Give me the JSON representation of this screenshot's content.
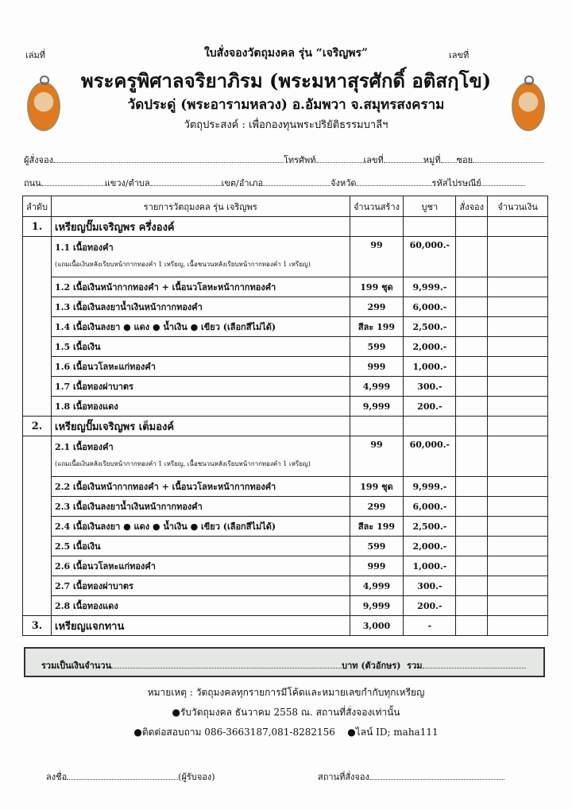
{
  "header": {
    "book_no_label": "เล่มที่",
    "form_title": "ใบสั่งจองวัตถุมงคล รุ่น “เจริญพร”",
    "number_label": "เลขที่",
    "monk_name": "พระครูพิศาลจริยาภิรม (พระมหาสุรศักดิ์  อติสกฺโข)",
    "temple": "วัดประดู่ (พระอารามหลวง) อ.อัมพวา จ.สมุทรสงคราม",
    "purpose": "วัตถุประสงค์ : เพื่อกองทุนพระปริยัติธรรมบาลีฯ"
  },
  "fields": {
    "orderer": "ผู้สั่งจอง",
    "phone": "โทรศัพท์",
    "house_no": "เลขที่",
    "moo": "หมู่ที่",
    "soi": "ซอย",
    "road": "ถนน",
    "subdistrict": "แขวง/ตำบล",
    "district": "เขต/อำเภอ",
    "province": "จังหวัด",
    "postcode": "รหัสไปรษณีย์"
  },
  "table": {
    "headers": [
      "ลำดับ",
      "รายการวัตถุมงคล รุ่น เจริญพร",
      "จำนวนสร้าง",
      "บูชา",
      "สั่งจอง",
      "จำนวนเงิน"
    ],
    "sections": [
      {
        "no": "1.",
        "title": "เหรียญปั๊มเจริญพร ครึ่งองค์",
        "items": [
          {
            "label": "1.1 เนื้อทองคำ",
            "note": "(แถมเนื้อเงินหลังเรียบหน้ากากทองคำ 1 เหรียญ, เนื้อชนวนหลังเรียบหน้ากากทองคำ 1 เหรียญ)",
            "qty": "99",
            "price": "60,000.-"
          },
          {
            "label": "1.2 เนื้อเงินหน้ากากทองคำ + เนื้อนวโลหะหน้ากากทองคำ",
            "qty": "199 ชุด",
            "price": "9,999.-"
          },
          {
            "label": "1.3 เนื้อเงินลงยาน้ำเงินหน้ากากทองคำ",
            "qty": "299",
            "price": "6,000.-"
          },
          {
            "label": "1.4 เนื้อเงินลงยา   ● แดง  ● น้ำเงิน  ● เขียว (เลือกสีไม่ได้)",
            "qty": "สีละ 199",
            "price": "2,500.-"
          },
          {
            "label": "1.5 เนื้อเงิน",
            "qty": "599",
            "price": "2,000.-"
          },
          {
            "label": "1.6 เนื้อนวโลหะแก่ทองคำ",
            "qty": "999",
            "price": "1,000.-"
          },
          {
            "label": "1.7 เนื้อทองฝาบาตร",
            "qty": "4,999",
            "price": "300.-"
          },
          {
            "label": "1.8 เนื้อทองแดง",
            "qty": "9,999",
            "price": "200.-"
          }
        ]
      },
      {
        "no": "2.",
        "title": "เหรียญปั๊มเจริญพร เต็มองค์",
        "items": [
          {
            "label": "2.1 เนื้อทองคำ",
            "note": "(แถมเนื้อเงินหลังเรียบหน้ากากทองคำ 1 เหรียญ, เนื้อชนวนหลังเรียบหน้ากากทองคำ 1 เหรียญ)",
            "qty": "99",
            "price": "60,000.-"
          },
          {
            "label": "2.2 เนื้อเงินหน้ากากทองคำ + เนื้อนวโลหะหน้ากากทองคำ",
            "qty": "199 ชุด",
            "price": "9,999.-"
          },
          {
            "label": "2.3 เนื้อเงินลงยาน้ำเงินหน้ากากทองคำ",
            "qty": "299",
            "price": "6,000.-"
          },
          {
            "label": "2.4 เนื้อเงินลงยา   ● แดง  ● น้ำเงิน  ● เขียว (เลือกสีไม่ได้)",
            "qty": "สีละ 199",
            "price": "2,500.-"
          },
          {
            "label": "2.5 เนื้อเงิน",
            "qty": "599",
            "price": "2,000.-"
          },
          {
            "label": "2.6 เนื้อนวโลหะแก่ทองคำ",
            "qty": "999",
            "price": "1,000.-"
          },
          {
            "label": "2.7 เนื้อทองฝาบาตร",
            "qty": "4,999",
            "price": "300.-"
          },
          {
            "label": "2.8 เนื้อทองแดง",
            "qty": "9,999",
            "price": "200.-"
          }
        ]
      },
      {
        "no": "3.",
        "title": "เหรียญแจกทาน",
        "qty": "3,000",
        "price": "-",
        "items": []
      }
    ]
  },
  "total": {
    "label": "รวมเป็นเงินจำนวน",
    "baht": "บาท (ตัวอักษร)",
    "sum": "รวม"
  },
  "notes": {
    "remark": "หมายเหตุ : วัตถุมงคลทุกรายการมีโค้ดและหมายเลขกำกับทุกเหรียญ",
    "pickup": "●รับวัตถุมงคล ธันวาคม 2558 ณ. สถานที่สั่งจองเท่านั้น",
    "contact": "●ติดต่อสอบถาม 086-3663187,081-8282156",
    "line": "●ไลน์ ID; maha111"
  },
  "signature": {
    "sign": "ลงชื่อ",
    "receiver": "(ผู้รับจอง)",
    "place": "สถานที่สั่งจอง"
  }
}
